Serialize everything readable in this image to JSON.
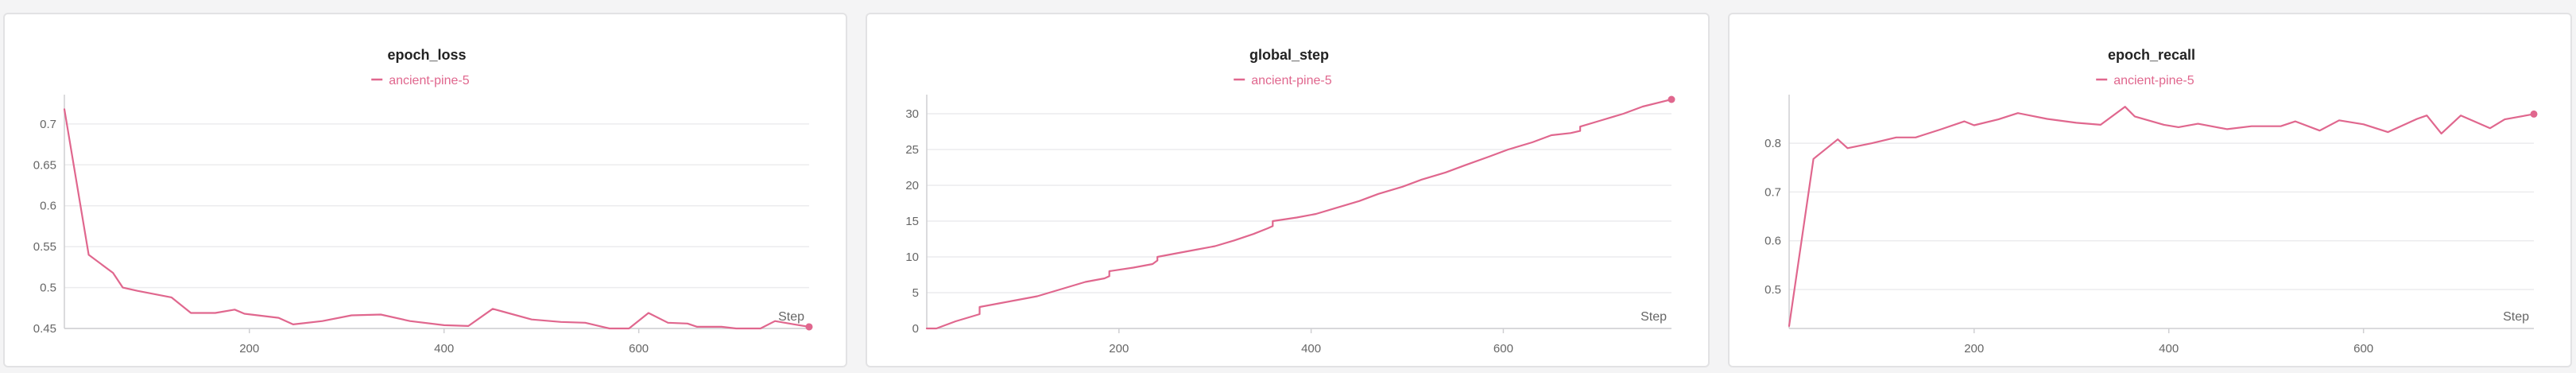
{
  "colors": {
    "series": "#e0678e",
    "grid": "#ececee",
    "axis": "#cfcfd2",
    "text": "#666666",
    "title": "#222222"
  },
  "chart_data": [
    {
      "type": "line",
      "title": "epoch_loss",
      "xlabel": "Step",
      "ylabel": "",
      "legend_position": "top-center",
      "grid": true,
      "xlim": [
        10,
        775
      ],
      "ylim": [
        0.45,
        0.73
      ],
      "xticks": [
        200,
        400,
        600
      ],
      "yticks": [
        0.45,
        0.5,
        0.55,
        0.6,
        0.65,
        0.7
      ],
      "ytick_labels": [
        "0.45",
        "0.5",
        "0.55",
        "0.6",
        "0.65",
        "0.7"
      ],
      "series": [
        {
          "name": "ancient-pine-5",
          "x": [
            10,
            35,
            60,
            70,
            85,
            120,
            140,
            165,
            185,
            195,
            230,
            245,
            275,
            305,
            335,
            365,
            400,
            425,
            450,
            490,
            520,
            545,
            570,
            590,
            610,
            630,
            650,
            660,
            685,
            700,
            725,
            740,
            760,
            775
          ],
          "y": [
            0.718,
            0.54,
            0.518,
            0.5,
            0.496,
            0.488,
            0.469,
            0.469,
            0.473,
            0.468,
            0.463,
            0.455,
            0.459,
            0.466,
            0.467,
            0.459,
            0.454,
            0.453,
            0.474,
            0.461,
            0.458,
            0.457,
            0.45,
            0.45,
            0.469,
            0.457,
            0.456,
            0.452,
            0.452,
            0.45,
            0.45,
            0.459,
            0.455,
            0.452
          ]
        }
      ]
    },
    {
      "type": "line",
      "title": "global_step",
      "xlabel": "Step",
      "ylabel": "",
      "legend_position": "top-center",
      "grid": true,
      "xlim": [
        0,
        775
      ],
      "ylim": [
        0,
        32
      ],
      "xticks": [
        200,
        400,
        600
      ],
      "yticks": [
        0,
        5,
        10,
        15,
        20,
        25,
        30
      ],
      "ytick_labels": [
        "0",
        "5",
        "10",
        "15",
        "20",
        "25",
        "30"
      ],
      "series": [
        {
          "name": "ancient-pine-5",
          "x": [
            0,
            10,
            30,
            55,
            55,
            75,
            95,
            115,
            140,
            165,
            185,
            190,
            190,
            215,
            235,
            240,
            240,
            260,
            280,
            300,
            320,
            340,
            355,
            360,
            360,
            385,
            405,
            425,
            450,
            470,
            495,
            515,
            540,
            560,
            585,
            605,
            630,
            650,
            670,
            680,
            680,
            700,
            725,
            745,
            775
          ],
          "y": [
            0,
            0,
            1,
            2,
            3,
            3.5,
            4,
            4.5,
            5.5,
            6.5,
            7,
            7.3,
            8,
            8.5,
            9,
            9.5,
            10,
            10.5,
            11,
            11.5,
            12.3,
            13.2,
            14,
            14.3,
            15,
            15.5,
            16,
            16.8,
            17.8,
            18.8,
            19.8,
            20.8,
            21.8,
            22.8,
            24,
            25,
            26,
            27,
            27.3,
            27.6,
            28.2,
            29,
            30,
            31,
            32
          ]
        }
      ]
    },
    {
      "type": "line",
      "title": "epoch_recall",
      "xlabel": "Step",
      "ylabel": "",
      "legend_position": "top-center",
      "grid": true,
      "xlim": [
        10,
        775
      ],
      "ylim": [
        0.42,
        0.89
      ],
      "xticks": [
        200,
        400,
        600
      ],
      "yticks": [
        0.5,
        0.6,
        0.7,
        0.8
      ],
      "ytick_labels": [
        "0.5",
        "0.6",
        "0.7",
        "0.8"
      ],
      "series": [
        {
          "name": "ancient-pine-5",
          "x": [
            10,
            35,
            60,
            70,
            95,
            120,
            140,
            165,
            190,
            200,
            225,
            245,
            275,
            305,
            330,
            355,
            365,
            395,
            410,
            430,
            460,
            485,
            515,
            530,
            555,
            575,
            600,
            625,
            655,
            665,
            680,
            700,
            730,
            745,
            775
          ],
          "y": [
            0.425,
            0.768,
            0.808,
            0.79,
            0.8,
            0.812,
            0.812,
            0.828,
            0.845,
            0.837,
            0.849,
            0.862,
            0.85,
            0.842,
            0.838,
            0.875,
            0.855,
            0.838,
            0.833,
            0.84,
            0.829,
            0.835,
            0.835,
            0.845,
            0.826,
            0.847,
            0.839,
            0.823,
            0.85,
            0.857,
            0.82,
            0.857,
            0.831,
            0.849,
            0.86
          ]
        }
      ]
    }
  ]
}
